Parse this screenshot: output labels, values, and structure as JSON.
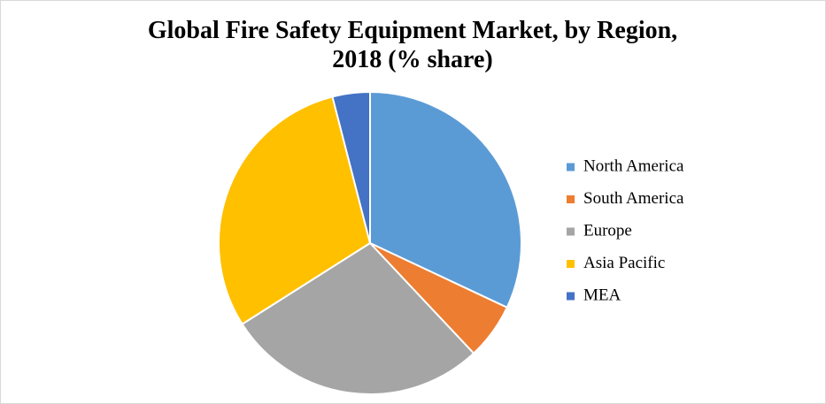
{
  "chart_data": {
    "type": "pie",
    "title": "Global Fire Safety Equipment Market, by Region, 2018 (% share)",
    "categories": [
      "North America",
      "South America",
      "Europe",
      "Asia Pacific",
      "MEA"
    ],
    "values": [
      32,
      6,
      28,
      30,
      4
    ],
    "colors": [
      "#5b9bd5",
      "#ed7d31",
      "#a5a5a5",
      "#ffc000",
      "#4472c4"
    ],
    "legend": "right"
  }
}
